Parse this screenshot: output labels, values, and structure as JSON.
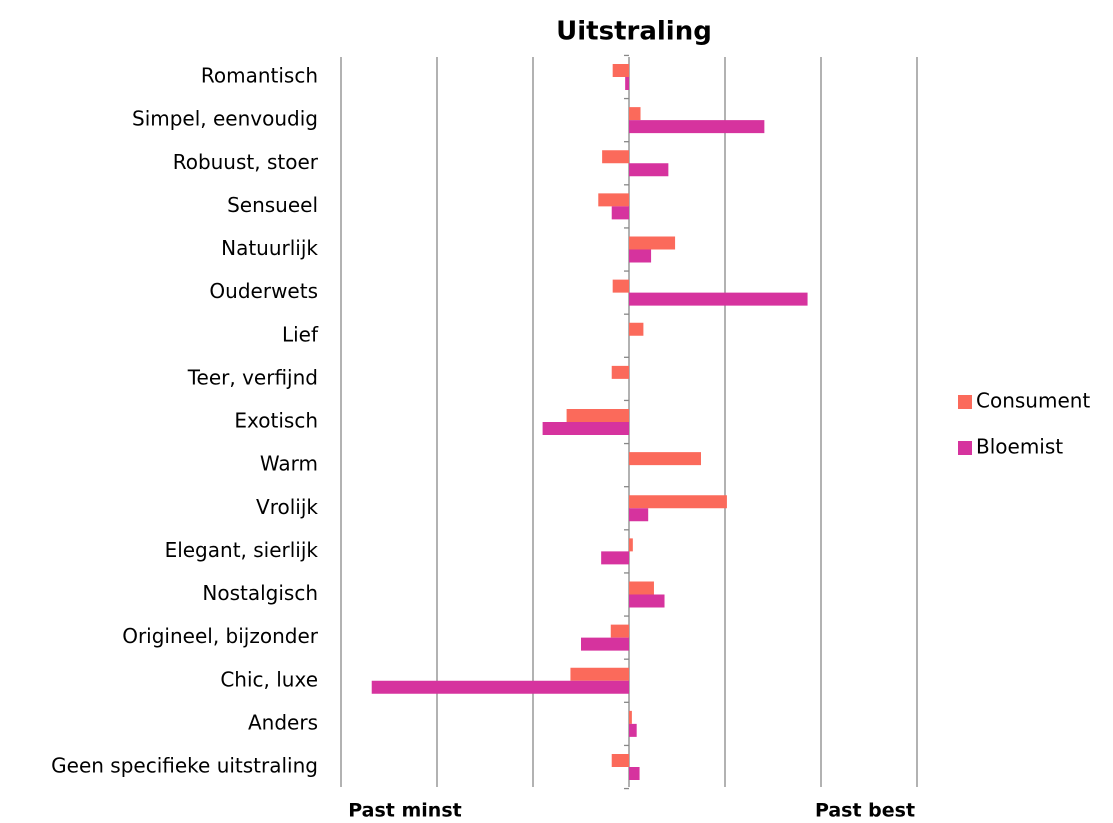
{
  "chart_data": {
    "type": "hbar",
    "title": "Uitstraling",
    "categories": [
      "Romantisch",
      "Simpel, eenvoudig",
      "Robuust, stoer",
      "Sensueel",
      "Natuurlijk",
      "Ouderwets",
      "Lief",
      "Teer, verfijnd",
      "Exotisch",
      "Warm",
      "Vrolijk",
      "Elegant, sierlijk",
      "Nostalgisch",
      "Origineel, bijzonder",
      "Chic, luxe",
      "Anders",
      "Geen specifieke uitstraling"
    ],
    "series": [
      {
        "name": "Consument",
        "color": "#fb6a5b",
        "values": [
          -0.17,
          0.12,
          -0.28,
          -0.32,
          0.48,
          -0.17,
          0.15,
          -0.18,
          -0.65,
          0.75,
          1.02,
          0.04,
          0.26,
          -0.19,
          -0.61,
          0.03,
          -0.18
        ]
      },
      {
        "name": "Bloemist",
        "color": "#d6339e",
        "values": [
          -0.04,
          1.41,
          0.41,
          -0.18,
          0.23,
          1.86,
          0,
          0,
          -0.9,
          0,
          0.2,
          -0.29,
          0.37,
          -0.5,
          -2.68,
          0.08,
          0.11
        ]
      }
    ],
    "xlim": [
      -3,
      3
    ],
    "xticks": [
      -3,
      -2,
      -1,
      0,
      1,
      2,
      3
    ],
    "grid": true,
    "annotations": [
      "Past minst",
      "Past best"
    ],
    "legend": "right"
  }
}
